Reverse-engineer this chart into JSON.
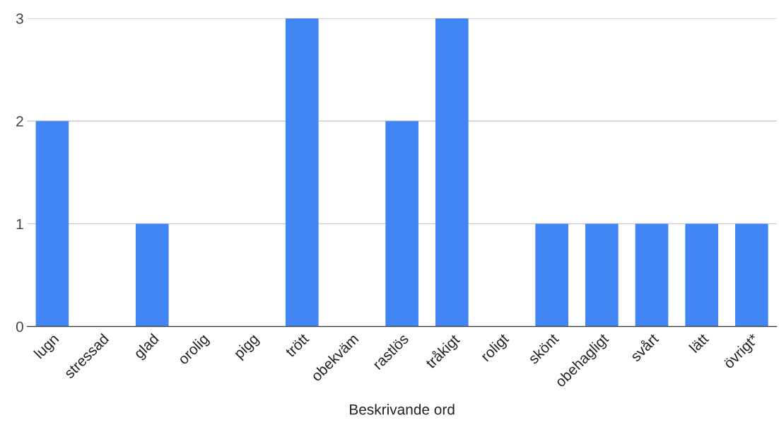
{
  "chart_data": {
    "type": "bar",
    "xlabel": "Beskrivande ord",
    "categories": [
      "lugn",
      "stressad",
      "glad",
      "orolig",
      "pigg",
      "trött",
      "obekväm",
      "rastlös",
      "tråkigt",
      "roligt",
      "skönt",
      "obehagligt",
      "svårt",
      "lätt",
      "övrigt*"
    ],
    "values": [
      2,
      0,
      1,
      0,
      0,
      3,
      0,
      2,
      3,
      0,
      1,
      1,
      1,
      1,
      1
    ],
    "color": "#4285f4",
    "ylim": [
      0,
      3
    ],
    "yticks": [
      0,
      1,
      2,
      3
    ],
    "grid": "y"
  }
}
